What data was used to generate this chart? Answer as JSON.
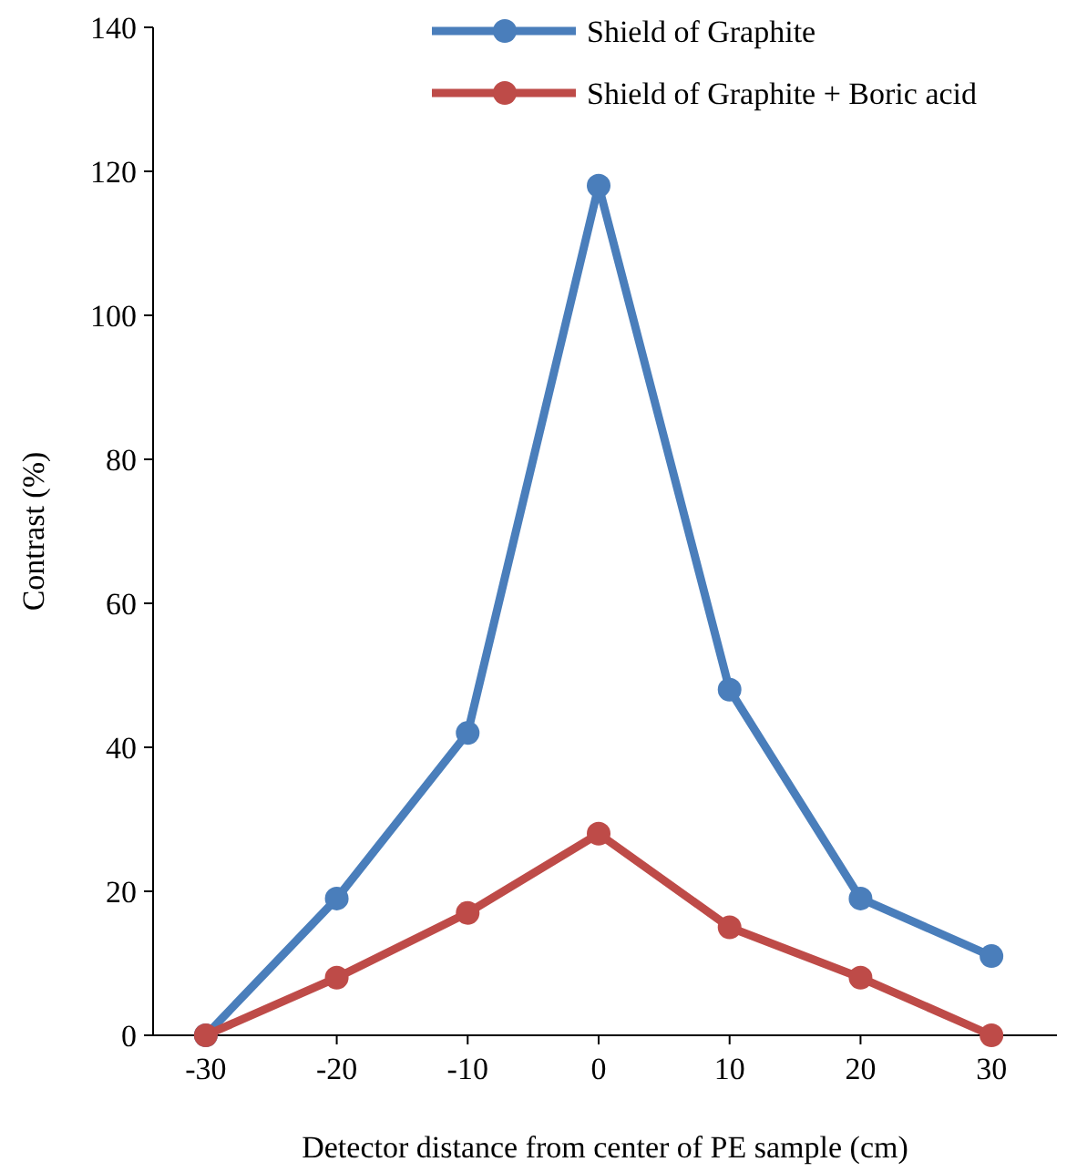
{
  "chart_data": {
    "type": "line",
    "xlabel": "Detector distance from center of PE sample (cm)",
    "ylabel": "Contrast (%)",
    "categories": [
      "-30",
      "-20",
      "-10",
      "0",
      "10",
      "20",
      "30"
    ],
    "series": [
      {
        "name": "Shield of Graphite",
        "color": "#4a7ebb",
        "values": [
          0,
          19,
          42,
          118,
          48,
          19,
          11
        ]
      },
      {
        "name": "Shield of Graphite + Boric acid",
        "color": "#be4b48",
        "values": [
          0,
          8,
          17,
          28,
          15,
          8,
          0
        ]
      }
    ],
    "ylim": [
      0,
      140
    ],
    "yticks": [
      0,
      20,
      40,
      60,
      80,
      100,
      120,
      140
    ],
    "grid": false,
    "legend": "top right",
    "marker": "circle",
    "line_style": "solid"
  }
}
